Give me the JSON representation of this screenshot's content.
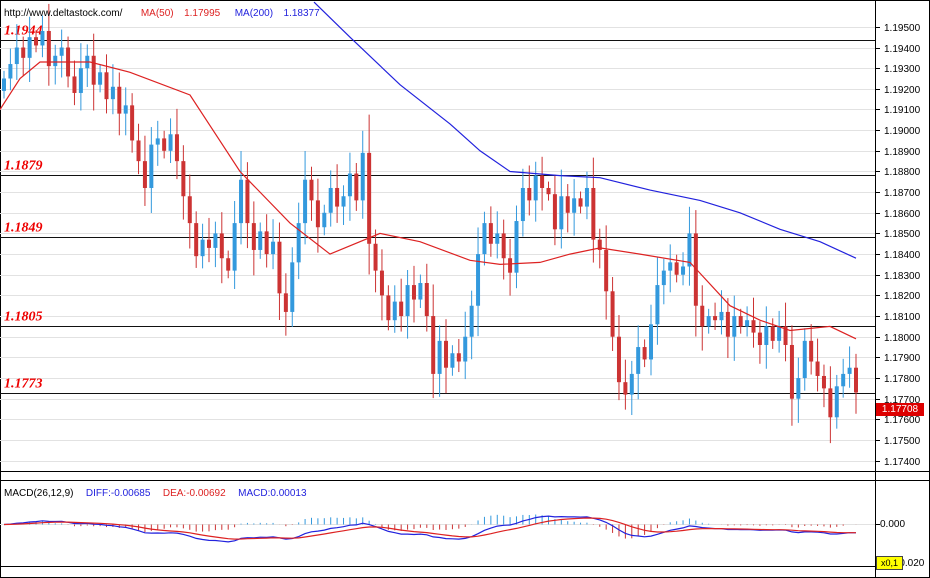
{
  "header": {
    "source_url": "http://www.deltastock.com/",
    "ma50_label": "MA(50)",
    "ma50_value": "1.17995",
    "ma200_label": "MA(200)",
    "ma200_value": "1.18377"
  },
  "macd_header": {
    "params": "MACD(26,12,9)",
    "diff": "DIFF:-0.00685",
    "dea": "DEA:-0.00692",
    "macd": "MACD:0.00013"
  },
  "current_price": "1.17708",
  "macd_tick_zero": "0.000",
  "macd_tick_bottom": "-0.020",
  "scale_badge": "x0,1",
  "colors": {
    "up": "#3399dd",
    "down": "#cc3333",
    "ma50": "#dd2222",
    "ma200": "#2222dd",
    "level_text": "#ee0000",
    "price_tag": "#dd0000"
  },
  "chart_data": {
    "type": "candlestick",
    "ylim": [
      1.1735,
      1.1963
    ],
    "y_ticks": [
      "1.19500",
      "1.19400",
      "1.19300",
      "1.19200",
      "1.19100",
      "1.19000",
      "1.18900",
      "1.18800",
      "1.18700",
      "1.18600",
      "1.18500",
      "1.18400",
      "1.18300",
      "1.18200",
      "1.18100",
      "1.18000",
      "1.17900",
      "1.17800",
      "1.17700",
      "1.17600",
      "1.17500",
      "1.17400"
    ],
    "levels": [
      {
        "label": "1.1944",
        "value": 1.19438
      },
      {
        "label": "1.1879",
        "value": 1.18785
      },
      {
        "label": "1.1849",
        "value": 1.18485
      },
      {
        "label": "1.1805",
        "value": 1.18052
      },
      {
        "label": "1.1773",
        "value": 1.17729
      }
    ],
    "closes": [
      1.1925,
      1.1932,
      1.194,
      1.1935,
      1.1945,
      1.1941,
      1.1948,
      1.1931,
      1.1936,
      1.194,
      1.1926,
      1.1918,
      1.193,
      1.1936,
      1.1922,
      1.1928,
      1.1915,
      1.1921,
      1.1908,
      1.1912,
      1.1895,
      1.1885,
      1.1872,
      1.1893,
      1.1896,
      1.189,
      1.1898,
      1.1885,
      1.1868,
      1.1855,
      1.1839,
      1.1847,
      1.1843,
      1.185,
      1.1838,
      1.1832,
      1.1855,
      1.1876,
      1.1855,
      1.1842,
      1.1851,
      1.184,
      1.1846,
      1.1821,
      1.1812,
      1.1836,
      1.1855,
      1.1876,
      1.1866,
      1.1853,
      1.186,
      1.1872,
      1.1863,
      1.1868,
      1.1879,
      1.1866,
      1.1889,
      1.1845,
      1.1832,
      1.182,
      1.1808,
      1.1817,
      1.181,
      1.1825,
      1.1818,
      1.1826,
      1.181,
      1.1782,
      1.1798,
      1.1785,
      1.1792,
      1.1788,
      1.18,
      1.1815,
      1.184,
      1.1855,
      1.1845,
      1.185,
      1.1838,
      1.1831,
      1.1856,
      1.1872,
      1.1866,
      1.1878,
      1.1872,
      1.1869,
      1.1852,
      1.1868,
      1.186,
      1.1867,
      1.1863,
      1.1872,
      1.1847,
      1.1842,
      1.1822,
      1.18,
      1.1778,
      1.1772,
      1.1782,
      1.1795,
      1.1789,
      1.1806,
      1.1825,
      1.1832,
      1.1836,
      1.183,
      1.1834,
      1.185,
      1.1815,
      1.1805,
      1.181,
      1.1808,
      1.1812,
      1.18,
      1.181,
      1.1805,
      1.1808,
      1.1802,
      1.1796,
      1.1805,
      1.1798,
      1.1805,
      1.1796,
      1.177,
      1.178,
      1.1798,
      1.1788,
      1.1781,
      1.1775,
      1.1761,
      1.1776,
      1.1782,
      1.1785,
      1.1773
    ],
    "ma50": [
      [
        0,
        1.191
      ],
      [
        20,
        1.1925
      ],
      [
        40,
        1.1933
      ],
      [
        90,
        1.1933
      ],
      [
        130,
        1.1928
      ],
      [
        190,
        1.1917
      ],
      [
        240,
        1.188
      ],
      [
        290,
        1.1855
      ],
      [
        330,
        1.184
      ],
      [
        380,
        1.185
      ],
      [
        420,
        1.1846
      ],
      [
        470,
        1.1837
      ],
      [
        500,
        1.1835
      ],
      [
        540,
        1.1836
      ],
      [
        570,
        1.184
      ],
      [
        600,
        1.1843
      ],
      [
        640,
        1.184
      ],
      [
        690,
        1.1836
      ],
      [
        730,
        1.1815
      ],
      [
        760,
        1.1808
      ],
      [
        790,
        1.1803
      ],
      [
        830,
        1.1805
      ],
      [
        856,
        1.1799
      ]
    ],
    "ma200": [
      [
        314,
        1.1962
      ],
      [
        350,
        1.1945
      ],
      [
        400,
        1.1922
      ],
      [
        450,
        1.1903
      ],
      [
        480,
        1.189
      ],
      [
        510,
        1.188
      ],
      [
        560,
        1.1878
      ],
      [
        600,
        1.1877
      ],
      [
        650,
        1.1871
      ],
      [
        700,
        1.1866
      ],
      [
        740,
        1.186
      ],
      [
        780,
        1.1852
      ],
      [
        820,
        1.1846
      ],
      [
        856,
        1.1838
      ]
    ]
  }
}
